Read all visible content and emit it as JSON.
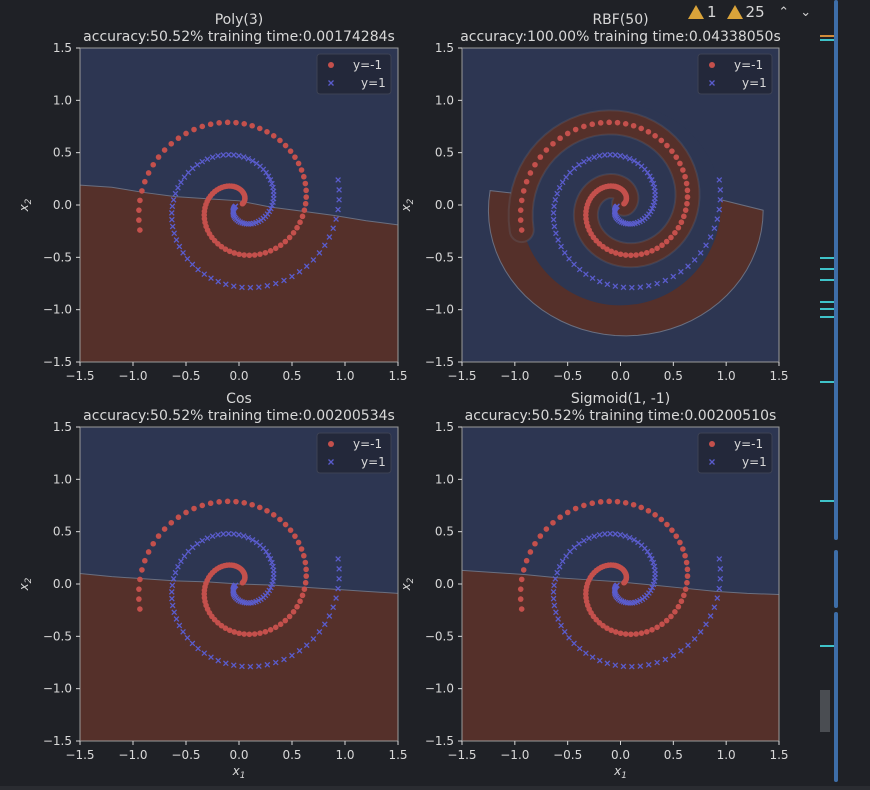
{
  "editor": {
    "warnings": {
      "error_count": "1",
      "warning_count": "25"
    },
    "scroll_markers": [
      {
        "color": "#d08b3a"
      },
      {
        "color": "#3fc3c9"
      },
      {
        "color": "#3fc3c9"
      },
      {
        "color": "#3fc3c9"
      },
      {
        "color": "#3fc3c9"
      },
      {
        "color": "#3fc3c9"
      },
      {
        "color": "#3fc3c9"
      },
      {
        "color": "#3fc3c9"
      },
      {
        "color": "#3fc3c9"
      },
      {
        "color": "#3fc3c9"
      },
      {
        "color": "#3fc3c9"
      }
    ]
  },
  "colors": {
    "class_neg_region": "#55302a",
    "class_pos_region": "#2d3652",
    "class_neg_point": "#c4504c",
    "class_pos_point": "#5a5ccc",
    "axes_text": "#d8d8d8",
    "background": "#1f2126"
  },
  "chart_data": [
    {
      "type": "scatter",
      "title": "Poly(3)",
      "subtitle": "accuracy:50.52%  training time:0.00174284s",
      "xlabel": "",
      "ylabel": "x2",
      "xlim": [
        -1.5,
        1.5
      ],
      "ylim": [
        -1.5,
        1.5
      ],
      "xticks": [
        "−1.5",
        "−1.0",
        "−0.5",
        "0.0",
        "0.5",
        "1.0",
        "1.5"
      ],
      "yticks": [
        "−1.5",
        "−1.0",
        "−0.5",
        "0.0",
        "0.5",
        "1.0",
        "1.5"
      ],
      "legend": [
        "y=-1",
        "y=1"
      ],
      "legend_position": "top-right",
      "series": [
        {
          "name": "y=-1",
          "values": "two-arm spiral, radius 0 to 1.0"
        },
        {
          "name": "y=1",
          "values": "two-arm spiral, radius 0 to 1.0"
        }
      ],
      "boundary": [
        [
          -1.5,
          0.19
        ],
        [
          -1.2,
          0.17
        ],
        [
          -0.9,
          0.12
        ],
        [
          -0.6,
          0.08
        ],
        [
          -0.3,
          0.06
        ],
        [
          0.0,
          0.04
        ],
        [
          0.3,
          -0.02
        ],
        [
          0.6,
          -0.06
        ],
        [
          0.9,
          -0.1
        ],
        [
          1.2,
          -0.15
        ],
        [
          1.5,
          -0.19
        ]
      ]
    },
    {
      "type": "scatter",
      "title": "RBF(50)",
      "subtitle": "accuracy:100.00%  training time:0.04338050s",
      "xlabel": "",
      "ylabel": "x2",
      "xlim": [
        -1.5,
        1.5
      ],
      "ylim": [
        -1.5,
        1.5
      ],
      "xticks": [
        "−1.5",
        "−1.0",
        "−0.5",
        "0.0",
        "0.5",
        "1.0",
        "1.5"
      ],
      "yticks": [
        "−1.5",
        "−1.0",
        "−0.5",
        "0.0",
        "0.5",
        "1.0",
        "1.5"
      ],
      "legend": [
        "y=-1",
        "y=1"
      ],
      "legend_position": "top-right",
      "series": [
        {
          "name": "y=-1",
          "values": "two-arm spiral, radius 0 to 1.0"
        },
        {
          "name": "y=1",
          "values": "two-arm spiral, radius 0 to 1.0"
        }
      ],
      "boundary": "spiral separating the two arms"
    },
    {
      "type": "scatter",
      "title": "Cos",
      "subtitle": "accuracy:50.52%  training time:0.00200534s",
      "xlabel": "x1",
      "ylabel": "x2",
      "xlim": [
        -1.5,
        1.5
      ],
      "ylim": [
        -1.5,
        1.5
      ],
      "xticks": [
        "−1.5",
        "−1.0",
        "−0.5",
        "0.0",
        "0.5",
        "1.0",
        "1.5"
      ],
      "yticks": [
        "−1.5",
        "−1.0",
        "−0.5",
        "0.0",
        "0.5",
        "1.0",
        "1.5"
      ],
      "legend": [
        "y=-1",
        "y=1"
      ],
      "legend_position": "top-right",
      "series": [
        {
          "name": "y=-1",
          "values": "two-arm spiral, radius 0 to 1.0"
        },
        {
          "name": "y=1",
          "values": "two-arm spiral, radius 0 to 1.0"
        }
      ],
      "boundary": [
        [
          -1.5,
          0.1
        ],
        [
          -1.2,
          0.07
        ],
        [
          -0.9,
          0.05
        ],
        [
          -0.6,
          0.03
        ],
        [
          -0.3,
          0.02
        ],
        [
          0.0,
          0.0
        ],
        [
          0.3,
          -0.01
        ],
        [
          0.6,
          -0.03
        ],
        [
          0.9,
          -0.05
        ],
        [
          1.2,
          -0.07
        ],
        [
          1.5,
          -0.09
        ]
      ]
    },
    {
      "type": "scatter",
      "title": "Sigmoid(1, -1)",
      "subtitle": "accuracy:50.52%  training time:0.00200510s",
      "xlabel": "x1",
      "ylabel": "x2",
      "xlim": [
        -1.5,
        1.5
      ],
      "ylim": [
        -1.5,
        1.5
      ],
      "xticks": [
        "−1.5",
        "−1.0",
        "−0.5",
        "0.0",
        "0.5",
        "1.0",
        "1.5"
      ],
      "yticks": [
        "−1.5",
        "−1.0",
        "−0.5",
        "0.0",
        "0.5",
        "1.0",
        "1.5"
      ],
      "legend": [
        "y=-1",
        "y=1"
      ],
      "legend_position": "top-right",
      "series": [
        {
          "name": "y=-1",
          "values": "two-arm spiral, radius 0 to 1.0"
        },
        {
          "name": "y=1",
          "values": "two-arm spiral, radius 0 to 1.0"
        }
      ],
      "boundary": [
        [
          -1.5,
          0.13
        ],
        [
          -1.2,
          0.11
        ],
        [
          -0.9,
          0.09
        ],
        [
          -0.6,
          0.06
        ],
        [
          -0.3,
          0.04
        ],
        [
          0.0,
          0.02
        ],
        [
          0.3,
          -0.01
        ],
        [
          0.6,
          -0.04
        ],
        [
          0.9,
          -0.07
        ],
        [
          1.2,
          -0.09
        ],
        [
          1.5,
          -0.1
        ]
      ]
    }
  ]
}
